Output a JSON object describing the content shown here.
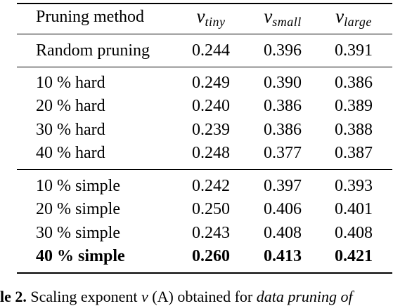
{
  "table": {
    "columns": [
      "Pruning method",
      {
        "symbol": "ν",
        "subscript": "tiny"
      },
      {
        "symbol": "ν",
        "subscript": "small"
      },
      {
        "symbol": "ν",
        "subscript": "large"
      }
    ],
    "baseline": [
      "Random pruning",
      "0.244",
      "0.396",
      "0.391"
    ],
    "hard_group": [
      [
        "10 % hard",
        "0.249",
        "0.390",
        "0.386"
      ],
      [
        "20 % hard",
        "0.240",
        "0.386",
        "0.389"
      ],
      [
        "30 % hard",
        "0.239",
        "0.386",
        "0.388"
      ],
      [
        "40 % hard",
        "0.248",
        "0.377",
        "0.387"
      ]
    ],
    "simple_group": [
      [
        "10 % simple",
        "0.242",
        "0.397",
        "0.393"
      ],
      [
        "20 % simple",
        "0.250",
        "0.406",
        "0.401"
      ],
      [
        "30 % simple",
        "0.243",
        "0.408",
        "0.408"
      ],
      [
        "40 % simple",
        "0.260",
        "0.413",
        "0.421"
      ]
    ],
    "best_row_bold": true
  },
  "caption": {
    "lead": "le 2.",
    "text1": " Scaling exponent ",
    "text2": " (A) obtained for ",
    "text3": " data pruning of"
  }
}
